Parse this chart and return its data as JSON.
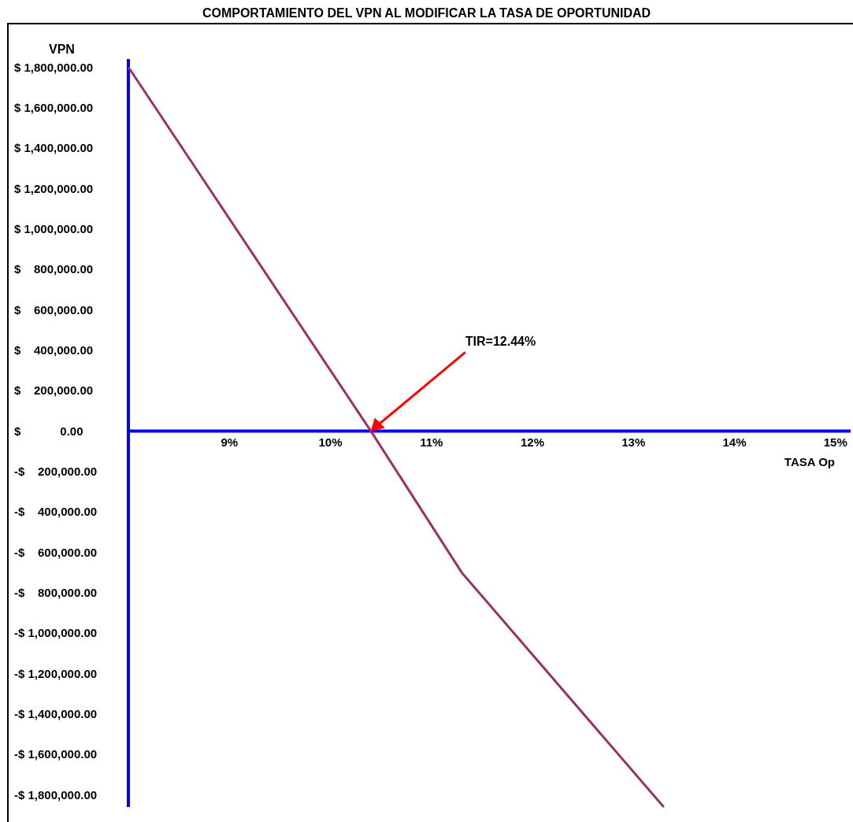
{
  "chart_data": {
    "type": "line",
    "title": "COMPORTAMIENTO DEL VPN AL MODIFICAR LA TASA DE OPORTUNIDAD",
    "xlabel": "TASA Op",
    "ylabel": "VPN",
    "x": [
      8,
      10.4,
      11.3,
      13.3
    ],
    "series": [
      {
        "color": "#993366",
        "values": [
          1800000,
          0,
          -700000,
          -1860000
        ]
      }
    ],
    "xlim": [
      8,
      15.15
    ],
    "xticks": [
      {
        "value": 9,
        "label": "9%"
      },
      {
        "value": 10,
        "label": "10%"
      },
      {
        "value": 11,
        "label": "11%"
      },
      {
        "value": 12,
        "label": "12%"
      },
      {
        "value": 13,
        "label": "13%"
      },
      {
        "value": 14,
        "label": "14%"
      },
      {
        "value": 15,
        "label": "15%"
      }
    ],
    "ylim": [
      -1860000,
      1840000
    ],
    "yticks": [
      {
        "value": 1800000,
        "label": "$ 1,800,000.00"
      },
      {
        "value": 1600000,
        "label": "$ 1,600,000.00"
      },
      {
        "value": 1400000,
        "label": "$ 1,400,000.00"
      },
      {
        "value": 1200000,
        "label": "$ 1,200,000.00"
      },
      {
        "value": 1000000,
        "label": "$ 1,000,000.00"
      },
      {
        "value": 800000,
        "label": "$    800,000.00"
      },
      {
        "value": 600000,
        "label": "$    600,000.00"
      },
      {
        "value": 400000,
        "label": "$    400,000.00"
      },
      {
        "value": 200000,
        "label": "$    200,000.00"
      },
      {
        "value": 0,
        "label": "$            0.00"
      },
      {
        "value": -200000,
        "label": "-$    200,000.00"
      },
      {
        "value": -400000,
        "label": "-$    400,000.00"
      },
      {
        "value": -600000,
        "label": "-$    600,000.00"
      },
      {
        "value": -800000,
        "label": "-$    800,000.00"
      },
      {
        "value": -1000000,
        "label": "-$ 1,000,000.00"
      },
      {
        "value": -1200000,
        "label": "-$ 1,200,000.00"
      },
      {
        "value": -1400000,
        "label": "-$ 1,400,000.00"
      },
      {
        "value": -1600000,
        "label": "-$ 1,600,000.00"
      },
      {
        "value": -1800000,
        "label": "-$ 1,800,000.00"
      }
    ],
    "annotations": [
      {
        "text": "TIR=12.44%",
        "x": 10.4,
        "y": 0
      }
    ],
    "grid": false,
    "marker": "none",
    "line_style": "solid"
  }
}
